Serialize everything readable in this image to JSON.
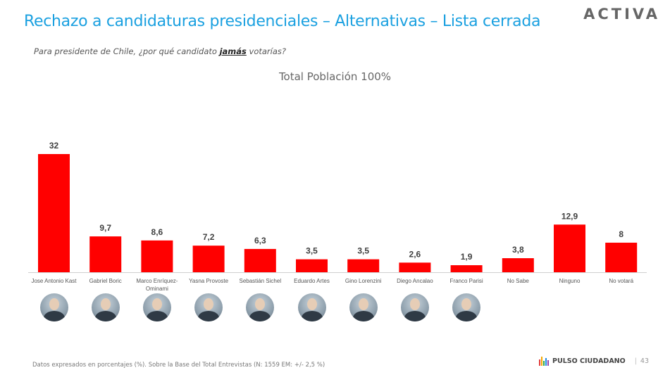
{
  "header": {
    "title": "Rechazo a candidaturas presidenciales – Alternativas – Lista cerrada",
    "brand": "ACTIVA"
  },
  "question": {
    "before": "Para presidente de Chile, ¿por qué candidato ",
    "emphasis": "jamás",
    "after": " votarías?"
  },
  "chart_data": {
    "type": "bar",
    "title": "Total Población 100%",
    "categories": [
      "Jose Antonio Kast",
      "Gabriel Boric",
      "Marco Enríquez-Ominami",
      "Yasna Provoste",
      "Sebastián Sichel",
      "Eduardo Artes",
      "Gino Lorenzini",
      "Diego Ancalao",
      "Franco Parisi",
      "No Sabe",
      "Ninguno",
      "No votará"
    ],
    "values": [
      32,
      9.7,
      8.6,
      7.2,
      6.3,
      3.5,
      3.5,
      2.6,
      1.9,
      3.8,
      12.9,
      8
    ],
    "value_labels": [
      "32",
      "9,7",
      "8,6",
      "7,2",
      "6,3",
      "3,5",
      "3,5",
      "2,6",
      "1,9",
      "3,8",
      "12,9",
      "8"
    ],
    "ylim": [
      0,
      32
    ],
    "bar_color": "#ff0000",
    "grid": false,
    "legend": "none"
  },
  "photos": {
    "count": 9,
    "icon": "candidate-portrait"
  },
  "footer": {
    "note": "Datos expresados en porcentajes (%). Sobre la Base del Total Entrevistas (N: 1559  EM: +/- 2,5 %)",
    "logo_text": "PULSO CIUDADANO",
    "separator": "|",
    "page_number": "43"
  }
}
